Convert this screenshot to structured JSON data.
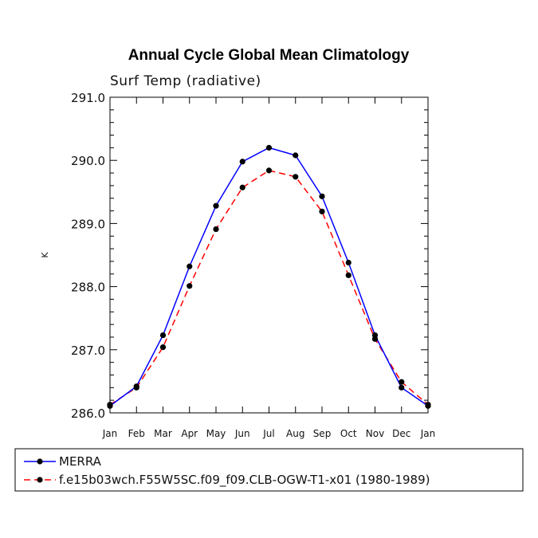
{
  "chart_data": {
    "type": "line",
    "title": "Annual Cycle Global Mean Climatology",
    "subtitle": "Surf Temp (radiative)",
    "ylabel": "K",
    "xlabel": "",
    "categories": [
      "Jan",
      "Feb",
      "Mar",
      "Apr",
      "May",
      "Jun",
      "Jul",
      "Aug",
      "Sep",
      "Oct",
      "Nov",
      "Dec",
      "Jan"
    ],
    "ylim": [
      286.0,
      291.0
    ],
    "yticks": [
      "286.0",
      "287.0",
      "288.0",
      "289.0",
      "290.0",
      "291.0"
    ],
    "series": [
      {
        "name": "MERRA",
        "color": "#0000ff",
        "dash": "solid",
        "values": [
          286.11,
          286.42,
          287.23,
          288.32,
          289.28,
          289.98,
          290.2,
          290.08,
          289.43,
          288.38,
          287.23,
          286.4,
          286.11
        ]
      },
      {
        "name": "f.e15b03wch.F55W5SC.f09_f09.CLB-OGW-T1-x01 (1980-1989)",
        "color": "#ff0000",
        "dash": "dashed",
        "values": [
          286.13,
          286.4,
          287.04,
          288.01,
          288.91,
          289.57,
          289.84,
          289.74,
          289.19,
          288.18,
          287.17,
          286.49,
          286.13
        ]
      }
    ]
  }
}
